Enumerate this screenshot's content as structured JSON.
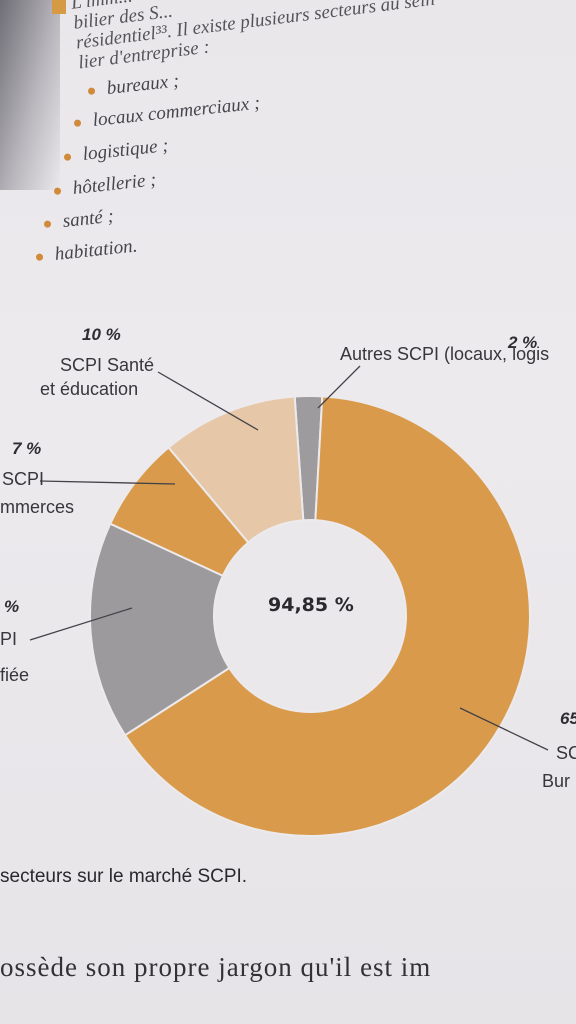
{
  "intro_lines": [
    "L'imm... ",
    "bilier des S...",
    "résidentiel³³. Il existe plusieurs secteurs au sein",
    "lier d'entreprise :"
  ],
  "bullets": [
    "bureaux ;",
    "locaux commerciaux ;",
    "logistique ;",
    "hôtellerie ;",
    "santé ;",
    "habitation."
  ],
  "chart": {
    "center_label": "94,85 %",
    "caption": "secteurs sur le marché SCPI.",
    "labels": {
      "sante_pct": "10 %",
      "sante_line1": "SCPI Santé",
      "sante_line2": "et éducation",
      "autres_pct": "2 %",
      "autres_name": "Autres SCPI (locaux, logis",
      "commerces_pct": "7 %",
      "commerces_line1": "SCPI",
      "commerces_line2": "mmerces",
      "diversifiee_pct": "%",
      "diversifiee_line1": "PI",
      "diversifiee_line2": "fiée",
      "bureaux_pct": "65",
      "bureaux_line1": "SC",
      "bureaux_line2": "Bur"
    }
  },
  "bottom_line": "ossède son propre jargon qu'il est im",
  "chart_data": {
    "type": "pie",
    "categories": [
      "Autres SCPI (locaux, logis",
      "SCPI Bur",
      "PI fiée",
      "SCPI mmerces",
      "SCPI Santé et éducation"
    ],
    "values": [
      2,
      65,
      16,
      7,
      10
    ],
    "colors": [
      "#9d9b9e",
      "#d99b4b",
      "#9c9a9c",
      "#d99b4b",
      "#e6c7a7"
    ]
  }
}
